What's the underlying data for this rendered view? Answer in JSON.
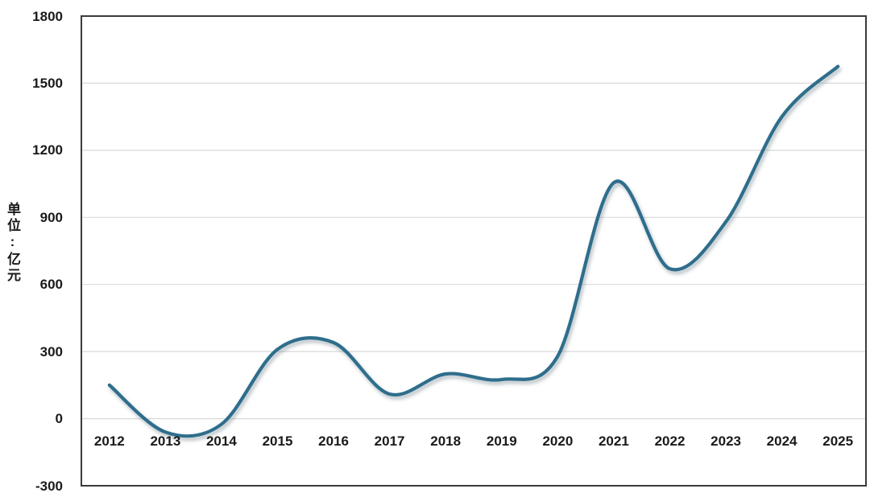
{
  "chart_data": {
    "type": "line",
    "smooth": true,
    "categories": [
      "2012",
      "2013",
      "2014",
      "2015",
      "2016",
      "2017",
      "2018",
      "2019",
      "2020",
      "2021",
      "2022",
      "2023",
      "2024",
      "2025"
    ],
    "values": [
      150,
      -60,
      -25,
      310,
      340,
      110,
      200,
      175,
      280,
      1055,
      670,
      880,
      1350,
      1575
    ],
    "ylabel": "单位:亿元",
    "xlabel": "",
    "ylim": [
      -300,
      1800
    ],
    "ytick_step": 300,
    "yticks": [
      1800,
      1500,
      1200,
      900,
      600,
      300,
      0,
      -300
    ],
    "grid": "horizontal",
    "legend": "none",
    "line_color": "#2d6e8c",
    "line_shadow_color": "#70818c",
    "grid_color": "#d9d9d9",
    "frame_color": "#3b3b3b",
    "label_color": "#1a1a1a",
    "background": "#ffffff"
  }
}
